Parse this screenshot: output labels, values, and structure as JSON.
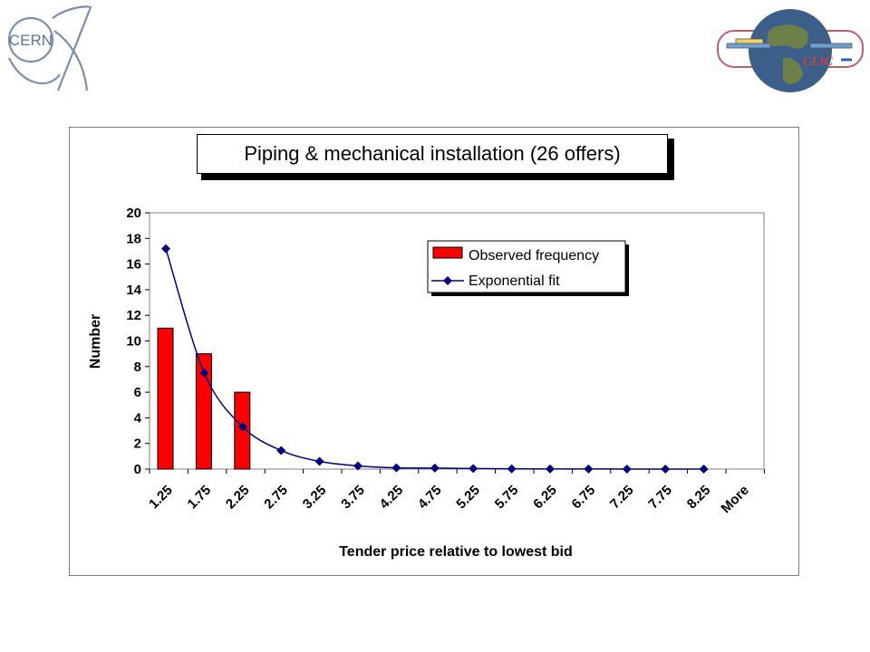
{
  "logos": {
    "cern_text": "CERN",
    "clic_text": "CLIC"
  },
  "colors": {
    "bar": "#ff0000",
    "line": "#000080",
    "plot_bg": "#ffffff"
  },
  "chart_data": {
    "type": "bar",
    "title": "Piping & mechanical installation (26 offers)",
    "xlabel": "Tender price relative to lowest bid",
    "ylabel": "Number",
    "categories": [
      "1.25",
      "1.75",
      "2.25",
      "2.75",
      "3.25",
      "3.75",
      "4.25",
      "4.75",
      "5.25",
      "5.75",
      "6.25",
      "6.75",
      "7.25",
      "7.75",
      "8.25",
      "More"
    ],
    "ylim": [
      0,
      20
    ],
    "yticks": [
      0,
      2,
      4,
      6,
      8,
      10,
      12,
      14,
      16,
      18,
      20
    ],
    "legend_position": "top-right",
    "series": [
      {
        "name": "Observed frequency",
        "type": "bar",
        "values": [
          11,
          9,
          6,
          0,
          0,
          0,
          0,
          0,
          0,
          0,
          0,
          0,
          0,
          0,
          0,
          0
        ]
      },
      {
        "name": "Exponential fit",
        "type": "line",
        "marker": "diamond",
        "values": [
          17.2,
          7.5,
          3.3,
          1.45,
          0.6,
          0.25,
          0.1,
          0.08,
          0.04,
          0.02,
          0.01,
          0.01,
          0.0,
          0.0,
          0.0,
          null
        ]
      }
    ]
  }
}
